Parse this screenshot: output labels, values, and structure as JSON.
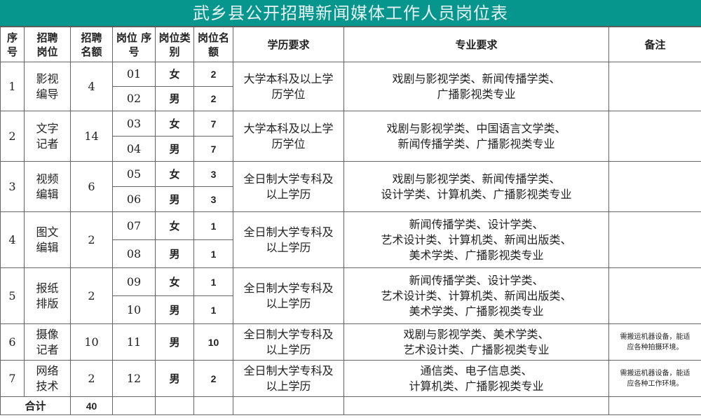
{
  "title": "武乡县公开招聘新闻媒体工作人员岗位表",
  "header": [
    "序号",
    "招聘岗位",
    "招聘名额",
    "岗位 序号",
    "岗位类别",
    "岗位名额",
    "学历要求",
    "专业要求",
    "备注"
  ],
  "header_lines": [
    [
      "序",
      "号"
    ],
    [
      "招聘",
      "岗位"
    ],
    [
      "招聘",
      "名额"
    ],
    [
      "岗位 序",
      "号"
    ],
    [
      "岗位类",
      "别"
    ],
    [
      "岗位名",
      "额"
    ],
    [
      "学历要求"
    ],
    [
      "专业要求"
    ],
    [
      "备注"
    ]
  ],
  "groups": [
    {
      "no": "1",
      "post": [
        "影视",
        "编导"
      ],
      "quota": "4",
      "edu": [
        "大学本科及以上学",
        "历学位"
      ],
      "major": [
        "戏剧与影视学类、新闻传播学类、",
        "广播影视类专业"
      ],
      "note": [],
      "positions": [
        {
          "code": "01",
          "gender": "女",
          "count": "2"
        },
        {
          "code": "02",
          "gender": "男",
          "count": "2"
        }
      ]
    },
    {
      "no": "2",
      "post": [
        "文字",
        "记者"
      ],
      "quota": "14",
      "edu": [
        "大学本科及以上学",
        "历学位"
      ],
      "major": [
        "戏剧与影视学类、中国语言文学类、",
        "新闻传播学类、广播影视类专业"
      ],
      "note": [],
      "positions": [
        {
          "code": "03",
          "gender": "女",
          "count": "7"
        },
        {
          "code": "04",
          "gender": "男",
          "count": "7"
        }
      ]
    },
    {
      "no": "3",
      "post": [
        "视频",
        "编辑"
      ],
      "quota": "6",
      "edu": [
        "全日制大学专科及",
        "以上学历"
      ],
      "major": [
        "戏剧与影视学类、新闻传播学类、",
        "设计学类、计算机类、广播影视类专业"
      ],
      "note": [],
      "positions": [
        {
          "code": "05",
          "gender": "女",
          "count": "3"
        },
        {
          "code": "06",
          "gender": "男",
          "count": "3"
        }
      ]
    },
    {
      "no": "4",
      "post": [
        "图文",
        "编辑"
      ],
      "quota": "2",
      "edu": [
        "全日制大学专科及",
        "以上学历"
      ],
      "major": [
        "新闻传播学类、设计学类、",
        "艺术设计类、计算机类、新闻出版类、",
        "美术学类、广播影视类专业"
      ],
      "note": [],
      "positions": [
        {
          "code": "07",
          "gender": "女",
          "count": "1"
        },
        {
          "code": "08",
          "gender": "男",
          "count": "1"
        }
      ]
    },
    {
      "no": "5",
      "post": [
        "报纸",
        "排版"
      ],
      "quota": "2",
      "edu": [
        "全日制大学专科及",
        "以上学历"
      ],
      "major": [
        "新闻传播学类、设计学类、",
        "艺术设计类、计算机类、新闻出版类、",
        "美术学类、广播影视类专业"
      ],
      "note": [],
      "positions": [
        {
          "code": "09",
          "gender": "女",
          "count": "1"
        },
        {
          "code": "10",
          "gender": "男",
          "count": "1"
        }
      ]
    },
    {
      "no": "6",
      "post": [
        "摄像",
        "记者"
      ],
      "quota": "10",
      "edu": [
        "全日制大学专科及",
        "以上学历"
      ],
      "major": [
        "戏剧与影视学类、美术学类、",
        "艺术设计类、广播影视类专业"
      ],
      "note": [
        "需搬运机器设备，能适",
        "应各种拍摄环境。"
      ],
      "positions": [
        {
          "code": "11",
          "gender": "男",
          "count": "10"
        }
      ]
    },
    {
      "no": "7",
      "post": [
        "网络",
        "技术"
      ],
      "quota": "2",
      "edu": [
        "全日制大学专科及",
        "以上学历"
      ],
      "major": [
        "通信类、电子信息类、",
        "计算机类、广播影视类专业"
      ],
      "note": [
        "需搬运机器设备，能适",
        "应各种工作环境。"
      ],
      "positions": [
        {
          "code": "12",
          "gender": "男",
          "count": "2"
        }
      ]
    }
  ],
  "total": {
    "label": "合计",
    "value": "40"
  }
}
